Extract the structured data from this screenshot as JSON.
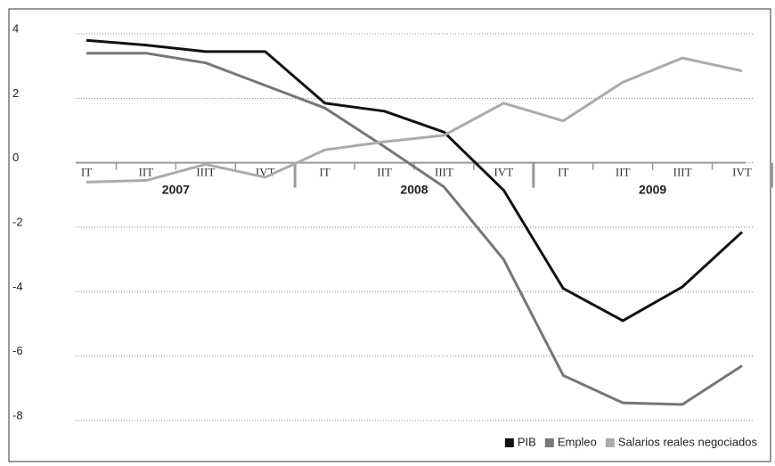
{
  "chart_data": {
    "type": "line",
    "categories": [
      "IT",
      "IIT",
      "IIIT",
      "IVT",
      "IT",
      "IIT",
      "IIIT",
      "IVT",
      "IT",
      "IIT",
      "IIIT",
      "IVT"
    ],
    "groups": [
      "2007",
      "2008",
      "2009"
    ],
    "series": [
      {
        "name": "PIB",
        "color": "#111111",
        "values": [
          3.8,
          3.65,
          3.45,
          3.45,
          1.85,
          1.6,
          0.95,
          -0.85,
          -3.9,
          -4.9,
          -3.85,
          -2.15
        ]
      },
      {
        "name": "Empleo",
        "color": "#767676",
        "values": [
          3.4,
          3.4,
          3.1,
          2.4,
          1.7,
          0.5,
          -0.75,
          -3.0,
          -6.6,
          -7.45,
          -7.5,
          -6.3
        ]
      },
      {
        "name": "Salarios reales negociados",
        "color": "#ababab",
        "values": [
          -0.6,
          -0.55,
          -0.05,
          -0.45,
          0.4,
          0.65,
          0.85,
          1.85,
          1.3,
          2.5,
          3.25,
          2.85
        ]
      }
    ],
    "ylim": [
      -8,
      4
    ],
    "yticks": [
      4,
      2,
      0,
      -2,
      -4,
      -6,
      -8
    ],
    "grid": true,
    "legend": "bottom-right"
  }
}
